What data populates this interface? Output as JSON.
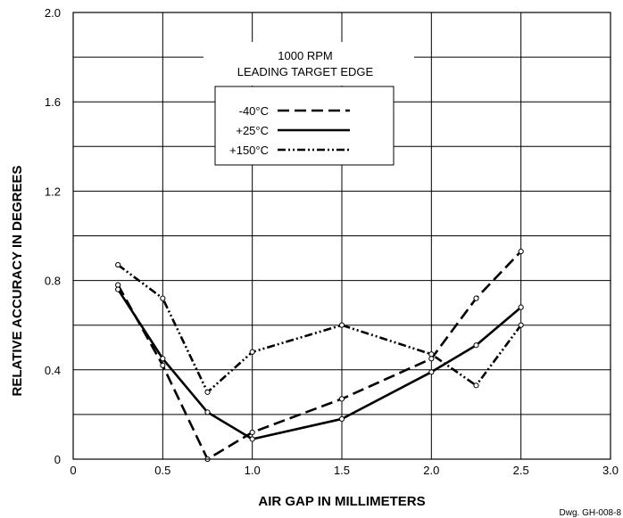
{
  "chart_data": {
    "type": "line",
    "xlabel": "AIR GAP IN MILLIMETERS",
    "ylabel": "RELATIVE ACCURACY IN DEGREES",
    "xlim": [
      0,
      3.0
    ],
    "ylim": [
      0,
      2.0
    ],
    "x_ticks": [
      "0",
      "0.5",
      "1.0",
      "1.5",
      "2.0",
      "2.5",
      "3.0"
    ],
    "y_ticks": [
      "0",
      "0.4",
      "0.8",
      "1.2",
      "1.6",
      "2.0"
    ],
    "grid": true,
    "legend_title": [
      "1000 RPM",
      "LEADING TARGET EDGE"
    ],
    "legend_position": "top-center",
    "series": [
      {
        "name": "-40°C",
        "style": "dashed",
        "x": [
          0.25,
          0.5,
          0.75,
          1.0,
          1.5,
          2.0,
          2.25,
          2.5
        ],
        "y": [
          0.78,
          0.42,
          0.0,
          0.12,
          0.27,
          0.45,
          0.72,
          0.93
        ]
      },
      {
        "name": "+25°C",
        "style": "solid",
        "x": [
          0.25,
          0.5,
          0.75,
          1.0,
          1.5,
          2.0,
          2.25,
          2.5
        ],
        "y": [
          0.76,
          0.45,
          0.21,
          0.09,
          0.18,
          0.39,
          0.51,
          0.68
        ]
      },
      {
        "name": "+150°C",
        "style": "dash-dot-dot",
        "x": [
          0.25,
          0.5,
          0.75,
          1.0,
          1.5,
          2.0,
          2.25,
          2.5
        ],
        "y": [
          0.87,
          0.72,
          0.3,
          0.48,
          0.6,
          0.47,
          0.33,
          0.6
        ]
      }
    ]
  },
  "footnote": "Dwg. GH-008-8"
}
